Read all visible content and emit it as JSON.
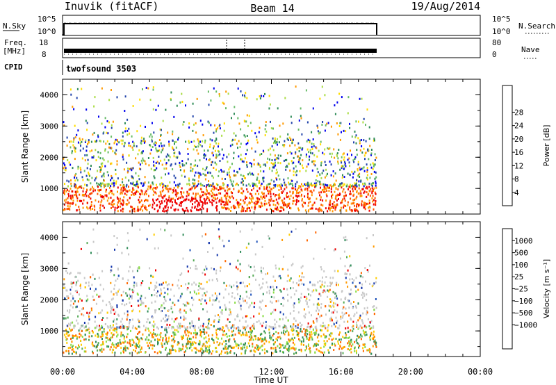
{
  "header": {
    "station": "Inuvik (fitACF)",
    "beam": "Beam 14",
    "date": "19/Aug/2014"
  },
  "strips": {
    "nsky_label": "N.Sky",
    "nsky_ticks": [
      "10^5",
      "10^0"
    ],
    "nsearch_ticks": [
      "10^5",
      "10^0"
    ],
    "nsearch_label": "N.Search",
    "freq_label": [
      "Freq.",
      "[MHz]"
    ],
    "freq_ticks": [
      "18",
      "8"
    ],
    "nave_ticks": [
      "80",
      "0"
    ],
    "nave_label": "Nave",
    "cpid_label": "CPID",
    "cpid_value": "twofsound 3503"
  },
  "chart_data": [
    {
      "type": "heatmap",
      "panel": "power",
      "xlabel": "Time UT",
      "ylabel": "Slant Range [km]",
      "x_tick_labels": [
        "00:00",
        "04:00",
        "08:00",
        "12:00",
        "16:00",
        "20:00",
        "00:00"
      ],
      "x_range_hours": [
        0,
        24
      ],
      "y_range_km": [
        180,
        4500
      ],
      "y_tick_labels": [
        "1000",
        "2000",
        "3000",
        "4000"
      ],
      "data_end_hour": 18,
      "colorbar": {
        "label": "Power [dB]",
        "ticks": [
          "4",
          "8",
          "12",
          "16",
          "20",
          "24",
          "28"
        ],
        "colors": [
          "#0000ee",
          "#2244aa",
          "#2e8b57",
          "#66bb66",
          "#aadd44",
          "#ffdd00",
          "#ff9900",
          "#ff5500",
          "#ee0000"
        ]
      },
      "grid": false
    },
    {
      "type": "heatmap",
      "panel": "velocity",
      "xlabel": "Time UT",
      "ylabel": "Slant Range [km]",
      "x_tick_labels": [
        "00:00",
        "04:00",
        "08:00",
        "12:00",
        "16:00",
        "20:00",
        "00:00"
      ],
      "x_range_hours": [
        0,
        24
      ],
      "y_range_km": [
        180,
        4500
      ],
      "y_tick_labels": [
        "1000",
        "2000",
        "3000",
        "4000"
      ],
      "data_end_hour": 18,
      "colorbar": {
        "label": "Velocity [m s⁻¹]",
        "ticks": [
          "1000",
          "500",
          "100",
          "25",
          "−25",
          "−100",
          "−500",
          "−1000"
        ],
        "colors": [
          "#1133aa",
          "#2255bb",
          "#2e8b57",
          "#55aa55",
          "#88dd44",
          "#c8c8c8",
          "#ffcc00",
          "#ff9900",
          "#ff6600",
          "#ee0000"
        ]
      },
      "grid": false
    }
  ]
}
